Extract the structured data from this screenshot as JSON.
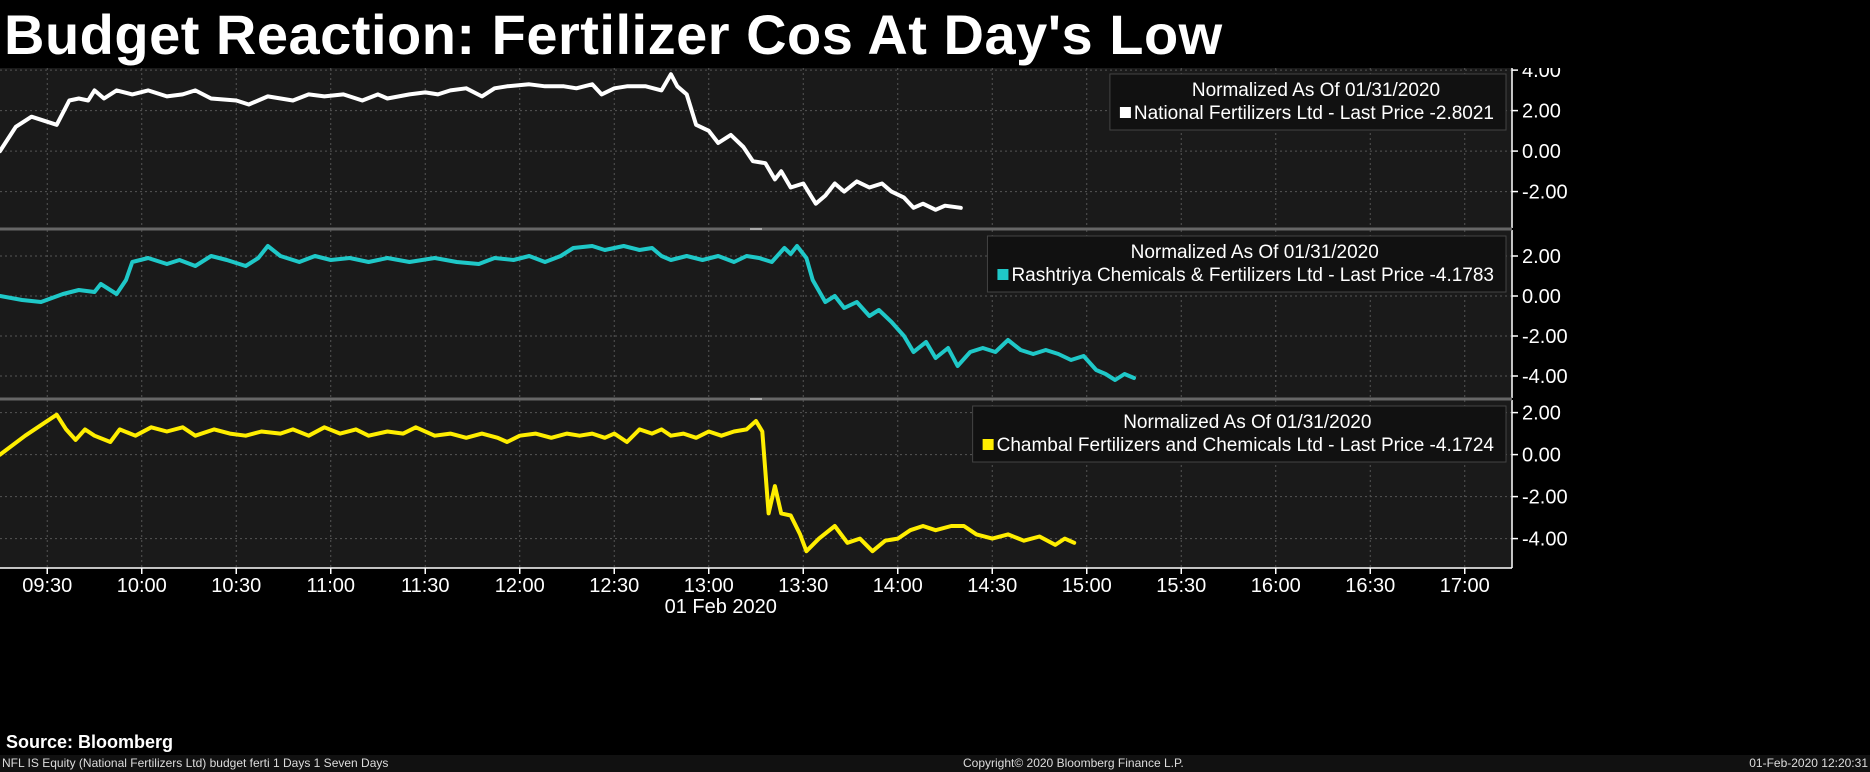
{
  "title": "Budget Reaction: Fertilizer Cos At Day's Low",
  "source": "Source: Bloomberg",
  "footer": {
    "left": "NFL IS Equity (National Fertilizers Ltd) budget ferti 1 Days 1 Seven Days",
    "center": "Copyright© 2020 Bloomberg Finance L.P.",
    "right": "01-Feb-2020 12:20:31"
  },
  "colors": {
    "background": "#000000",
    "plot_bg": "#1a1a1a",
    "grid": "#555555",
    "white": "#ffffff",
    "cyan": "#1fc8c8",
    "yellow": "#ffee00"
  },
  "chart_data": {
    "type": "line",
    "x_label": "01 Feb 2020",
    "x_range": [
      "09:15",
      "17:15"
    ],
    "x_ticks": [
      "09:30",
      "10:00",
      "10:30",
      "11:00",
      "11:30",
      "12:00",
      "12:30",
      "13:00",
      "13:30",
      "14:00",
      "14:30",
      "15:00",
      "15:30",
      "16:00",
      "16:30",
      "17:00"
    ],
    "grid": true,
    "legend_position": "top-right",
    "panels": [
      {
        "legend_title": "Normalized As Of 01/31/2020",
        "legend_label": "National Fertilizers Ltd - Last Price -2.8021",
        "color": "#ffffff",
        "ylim": [
          -3.8,
          4.5
        ],
        "y_ticks": [
          "4.00",
          "2.00",
          "0.00",
          "-2.00"
        ],
        "y_tick_values": [
          4,
          2,
          0,
          -2
        ],
        "points": [
          [
            "09:15",
            0
          ],
          [
            "09:20",
            1.2
          ],
          [
            "09:25",
            1.7
          ],
          [
            "09:33",
            1.3
          ],
          [
            "09:37",
            2.5
          ],
          [
            "09:40",
            2.6
          ],
          [
            "09:43",
            2.5
          ],
          [
            "09:45",
            3.0
          ],
          [
            "09:48",
            2.6
          ],
          [
            "09:52",
            3.0
          ],
          [
            "09:57",
            2.8
          ],
          [
            "10:02",
            3.0
          ],
          [
            "10:08",
            2.7
          ],
          [
            "10:13",
            2.8
          ],
          [
            "10:17",
            3.0
          ],
          [
            "10:22",
            2.6
          ],
          [
            "10:30",
            2.5
          ],
          [
            "10:34",
            2.3
          ],
          [
            "10:40",
            2.7
          ],
          [
            "10:48",
            2.5
          ],
          [
            "10:53",
            2.8
          ],
          [
            "10:58",
            2.7
          ],
          [
            "11:04",
            2.8
          ],
          [
            "11:10",
            2.5
          ],
          [
            "11:15",
            2.8
          ],
          [
            "11:18",
            2.6
          ],
          [
            "11:25",
            2.8
          ],
          [
            "11:30",
            2.9
          ],
          [
            "11:34",
            2.8
          ],
          [
            "11:38",
            3.0
          ],
          [
            "11:43",
            3.1
          ],
          [
            "11:48",
            2.7
          ],
          [
            "11:52",
            3.1
          ],
          [
            "11:56",
            3.2
          ],
          [
            "12:03",
            3.3
          ],
          [
            "12:08",
            3.2
          ],
          [
            "12:14",
            3.2
          ],
          [
            "12:18",
            3.1
          ],
          [
            "12:23",
            3.3
          ],
          [
            "12:26",
            2.8
          ],
          [
            "12:30",
            3.1
          ],
          [
            "12:34",
            3.2
          ],
          [
            "12:40",
            3.2
          ],
          [
            "12:45",
            3.0
          ],
          [
            "12:48",
            3.8
          ],
          [
            "12:50",
            3.2
          ],
          [
            "12:53",
            2.8
          ],
          [
            "12:56",
            1.3
          ],
          [
            "13:00",
            1.0
          ],
          [
            "13:03",
            0.4
          ],
          [
            "13:07",
            0.8
          ],
          [
            "13:11",
            0.2
          ],
          [
            "13:14",
            -0.5
          ],
          [
            "13:18",
            -0.6
          ],
          [
            "13:21",
            -1.4
          ],
          [
            "13:23",
            -1.0
          ],
          [
            "13:26",
            -1.8
          ],
          [
            "13:30",
            -1.6
          ],
          [
            "13:34",
            -2.6
          ],
          [
            "13:37",
            -2.2
          ],
          [
            "13:40",
            -1.6
          ],
          [
            "13:43",
            -2.0
          ],
          [
            "13:47",
            -1.5
          ],
          [
            "13:51",
            -1.8
          ],
          [
            "13:55",
            -1.6
          ],
          [
            "13:58",
            -2.0
          ],
          [
            "14:02",
            -2.3
          ],
          [
            "14:05",
            -2.8
          ],
          [
            "14:08",
            -2.6
          ],
          [
            "14:12",
            -2.9
          ],
          [
            "14:15",
            -2.7
          ],
          [
            "14:20",
            -2.8
          ]
        ]
      },
      {
        "legend_title": "Normalized As Of 01/31/2020",
        "legend_label": "Rashtriya Chemicals & Fertilizers Ltd - Last Price -4.1783",
        "color": "#1fc8c8",
        "ylim": [
          -5.1,
          3.3
        ],
        "y_ticks": [
          "2.00",
          "0.00",
          "-2.00",
          "-4.00"
        ],
        "y_tick_values": [
          2,
          0,
          -2,
          -4
        ],
        "points": [
          [
            "09:15",
            0
          ],
          [
            "09:22",
            -0.2
          ],
          [
            "09:28",
            -0.3
          ],
          [
            "09:35",
            0.1
          ],
          [
            "09:40",
            0.3
          ],
          [
            "09:45",
            0.2
          ],
          [
            "09:47",
            0.6
          ],
          [
            "09:52",
            0.1
          ],
          [
            "09:55",
            0.8
          ],
          [
            "09:57",
            1.7
          ],
          [
            "10:02",
            1.9
          ],
          [
            "10:08",
            1.6
          ],
          [
            "10:12",
            1.8
          ],
          [
            "10:17",
            1.5
          ],
          [
            "10:22",
            2.0
          ],
          [
            "10:27",
            1.8
          ],
          [
            "10:33",
            1.5
          ],
          [
            "10:37",
            1.9
          ],
          [
            "10:40",
            2.5
          ],
          [
            "10:44",
            2.0
          ],
          [
            "10:50",
            1.7
          ],
          [
            "10:55",
            2.0
          ],
          [
            "11:00",
            1.8
          ],
          [
            "11:06",
            1.9
          ],
          [
            "11:12",
            1.7
          ],
          [
            "11:18",
            1.9
          ],
          [
            "11:25",
            1.7
          ],
          [
            "11:33",
            1.9
          ],
          [
            "11:40",
            1.7
          ],
          [
            "11:47",
            1.6
          ],
          [
            "11:52",
            1.9
          ],
          [
            "11:58",
            1.8
          ],
          [
            "12:03",
            2.0
          ],
          [
            "12:08",
            1.7
          ],
          [
            "12:13",
            2.0
          ],
          [
            "12:17",
            2.4
          ],
          [
            "12:23",
            2.5
          ],
          [
            "12:27",
            2.3
          ],
          [
            "12:33",
            2.5
          ],
          [
            "12:38",
            2.3
          ],
          [
            "12:42",
            2.4
          ],
          [
            "12:45",
            2.0
          ],
          [
            "12:48",
            1.8
          ],
          [
            "12:53",
            2.0
          ],
          [
            "12:58",
            1.8
          ],
          [
            "13:03",
            2.0
          ],
          [
            "13:08",
            1.7
          ],
          [
            "13:12",
            2.0
          ],
          [
            "13:16",
            1.9
          ],
          [
            "13:20",
            1.7
          ],
          [
            "13:24",
            2.4
          ],
          [
            "13:26",
            2.1
          ],
          [
            "13:28",
            2.5
          ],
          [
            "13:31",
            1.9
          ],
          [
            "13:33",
            0.8
          ],
          [
            "13:37",
            -0.3
          ],
          [
            "13:40",
            0.0
          ],
          [
            "13:43",
            -0.6
          ],
          [
            "13:47",
            -0.3
          ],
          [
            "13:51",
            -1.0
          ],
          [
            "13:54",
            -0.7
          ],
          [
            "13:58",
            -1.3
          ],
          [
            "14:02",
            -2.0
          ],
          [
            "14:05",
            -2.8
          ],
          [
            "14:09",
            -2.3
          ],
          [
            "14:12",
            -3.1
          ],
          [
            "14:16",
            -2.6
          ],
          [
            "14:19",
            -3.5
          ],
          [
            "14:23",
            -2.8
          ],
          [
            "14:27",
            -2.6
          ],
          [
            "14:31",
            -2.8
          ],
          [
            "14:35",
            -2.2
          ],
          [
            "14:39",
            -2.7
          ],
          [
            "14:43",
            -2.9
          ],
          [
            "14:47",
            -2.7
          ],
          [
            "14:51",
            -2.9
          ],
          [
            "14:55",
            -3.2
          ],
          [
            "14:59",
            -3.0
          ],
          [
            "15:03",
            -3.7
          ],
          [
            "15:06",
            -3.9
          ],
          [
            "15:09",
            -4.2
          ],
          [
            "15:12",
            -3.9
          ],
          [
            "15:15",
            -4.1
          ]
        ]
      },
      {
        "legend_title": "Normalized As Of 01/31/2020",
        "legend_label": "Chambal Fertilizers and Chemicals Ltd - Last Price -4.1724",
        "color": "#ffee00",
        "ylim": [
          -5.4,
          2.6
        ],
        "y_ticks": [
          "2.00",
          "0.00",
          "-2.00",
          "-4.00"
        ],
        "y_tick_values": [
          2,
          0,
          -2,
          -4
        ],
        "points": [
          [
            "09:15",
            0
          ],
          [
            "09:23",
            0.9
          ],
          [
            "09:29",
            1.5
          ],
          [
            "09:33",
            1.9
          ],
          [
            "09:36",
            1.2
          ],
          [
            "09:39",
            0.7
          ],
          [
            "09:42",
            1.2
          ],
          [
            "09:45",
            0.9
          ],
          [
            "09:50",
            0.6
          ],
          [
            "09:53",
            1.2
          ],
          [
            "09:58",
            0.9
          ],
          [
            "10:03",
            1.3
          ],
          [
            "10:08",
            1.1
          ],
          [
            "10:13",
            1.3
          ],
          [
            "10:17",
            0.9
          ],
          [
            "10:23",
            1.2
          ],
          [
            "10:28",
            1.0
          ],
          [
            "10:33",
            0.9
          ],
          [
            "10:38",
            1.1
          ],
          [
            "10:44",
            1.0
          ],
          [
            "10:48",
            1.2
          ],
          [
            "10:53",
            0.9
          ],
          [
            "10:58",
            1.3
          ],
          [
            "11:03",
            1.0
          ],
          [
            "11:08",
            1.2
          ],
          [
            "11:12",
            0.9
          ],
          [
            "11:18",
            1.1
          ],
          [
            "11:23",
            1.0
          ],
          [
            "11:27",
            1.3
          ],
          [
            "11:33",
            0.9
          ],
          [
            "11:38",
            1.0
          ],
          [
            "11:43",
            0.8
          ],
          [
            "11:48",
            1.0
          ],
          [
            "11:53",
            0.8
          ],
          [
            "11:56",
            0.6
          ],
          [
            "12:00",
            0.9
          ],
          [
            "12:05",
            1.0
          ],
          [
            "12:10",
            0.8
          ],
          [
            "12:15",
            1.0
          ],
          [
            "12:19",
            0.9
          ],
          [
            "12:23",
            1.0
          ],
          [
            "12:27",
            0.8
          ],
          [
            "12:30",
            1.0
          ],
          [
            "12:34",
            0.6
          ],
          [
            "12:38",
            1.2
          ],
          [
            "12:42",
            1.0
          ],
          [
            "12:45",
            1.2
          ],
          [
            "12:48",
            0.9
          ],
          [
            "12:52",
            1.0
          ],
          [
            "12:56",
            0.8
          ],
          [
            "13:00",
            1.1
          ],
          [
            "13:04",
            0.9
          ],
          [
            "13:08",
            1.1
          ],
          [
            "13:12",
            1.2
          ],
          [
            "13:15",
            1.6
          ],
          [
            "13:17",
            1.1
          ],
          [
            "13:19",
            -2.8
          ],
          [
            "13:21",
            -1.5
          ],
          [
            "13:23",
            -2.8
          ],
          [
            "13:26",
            -2.9
          ],
          [
            "13:29",
            -3.8
          ],
          [
            "13:31",
            -4.6
          ],
          [
            "13:35",
            -4.0
          ],
          [
            "13:40",
            -3.4
          ],
          [
            "13:44",
            -4.2
          ],
          [
            "13:48",
            -4.0
          ],
          [
            "13:52",
            -4.6
          ],
          [
            "13:56",
            -4.1
          ],
          [
            "14:00",
            -4.0
          ],
          [
            "14:04",
            -3.6
          ],
          [
            "14:08",
            -3.4
          ],
          [
            "14:12",
            -3.6
          ],
          [
            "14:17",
            -3.4
          ],
          [
            "14:21",
            -3.4
          ],
          [
            "14:25",
            -3.8
          ],
          [
            "14:30",
            -4.0
          ],
          [
            "14:35",
            -3.8
          ],
          [
            "14:40",
            -4.1
          ],
          [
            "14:45",
            -3.9
          ],
          [
            "14:50",
            -4.3
          ],
          [
            "14:53",
            -4.0
          ],
          [
            "14:56",
            -4.2
          ]
        ]
      }
    ]
  }
}
